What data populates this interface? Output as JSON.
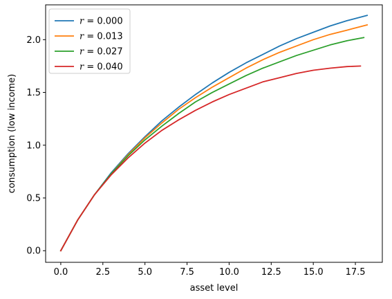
{
  "chart_data": {
    "type": "line",
    "xlabel": "asset level",
    "ylabel": "consumption (low income)",
    "xlim": [
      -0.9,
      19.1
    ],
    "ylim": [
      -0.11,
      2.33
    ],
    "xticks": [
      0.0,
      2.5,
      5.0,
      7.5,
      10.0,
      12.5,
      15.0,
      17.5
    ],
    "xtick_labels": [
      "0.0",
      "2.5",
      "5.0",
      "7.5",
      "10.0",
      "12.5",
      "15.0",
      "17.5"
    ],
    "yticks": [
      0.0,
      0.5,
      1.0,
      1.5,
      2.0
    ],
    "ytick_labels": [
      "0.0",
      "0.5",
      "1.0",
      "1.5",
      "2.0"
    ],
    "grid": false,
    "legend_position": "top-left",
    "series": [
      {
        "name": "r = 0.000",
        "legend_var": "r",
        "legend_eq": " = 0.000",
        "color": "#1f77b4",
        "x": [
          0,
          1,
          2,
          3,
          4,
          5,
          6,
          7,
          8,
          9,
          10,
          11,
          12,
          13,
          14,
          15,
          16,
          17,
          18.2
        ],
        "y": [
          0.0,
          0.29,
          0.53,
          0.74,
          0.92,
          1.08,
          1.23,
          1.36,
          1.48,
          1.59,
          1.69,
          1.78,
          1.86,
          1.94,
          2.01,
          2.07,
          2.13,
          2.18,
          2.23
        ]
      },
      {
        "name": "r = 0.013",
        "legend_var": "r",
        "legend_eq": " = 0.013",
        "color": "#ff7f0e",
        "x": [
          0,
          1,
          2,
          3,
          4,
          5,
          6,
          7,
          8,
          9,
          10,
          11,
          12,
          13,
          14,
          15,
          16,
          17,
          18.2
        ],
        "y": [
          0.0,
          0.29,
          0.53,
          0.73,
          0.91,
          1.07,
          1.21,
          1.34,
          1.45,
          1.55,
          1.64,
          1.73,
          1.81,
          1.88,
          1.94,
          2.0,
          2.05,
          2.09,
          2.14
        ]
      },
      {
        "name": "r = 0.027",
        "legend_var": "r",
        "legend_eq": " = 0.027",
        "color": "#2ca02c",
        "x": [
          0,
          1,
          2,
          3,
          4,
          5,
          6,
          7,
          8,
          9,
          10,
          11,
          12,
          13,
          14,
          15,
          16,
          17,
          18.0
        ],
        "y": [
          0.0,
          0.29,
          0.53,
          0.73,
          0.9,
          1.05,
          1.18,
          1.3,
          1.41,
          1.5,
          1.58,
          1.66,
          1.73,
          1.79,
          1.85,
          1.9,
          1.95,
          1.99,
          2.02
        ]
      },
      {
        "name": "r = 0.040",
        "legend_var": "r",
        "legend_eq": " = 0.040",
        "color": "#d62728",
        "x": [
          0,
          1,
          2,
          3,
          4,
          5,
          6,
          7,
          8,
          9,
          10,
          11,
          12,
          13,
          14,
          15,
          16,
          17,
          17.8
        ],
        "y": [
          0.0,
          0.29,
          0.53,
          0.72,
          0.88,
          1.02,
          1.14,
          1.24,
          1.33,
          1.41,
          1.48,
          1.54,
          1.6,
          1.64,
          1.68,
          1.71,
          1.73,
          1.745,
          1.75
        ]
      }
    ]
  }
}
